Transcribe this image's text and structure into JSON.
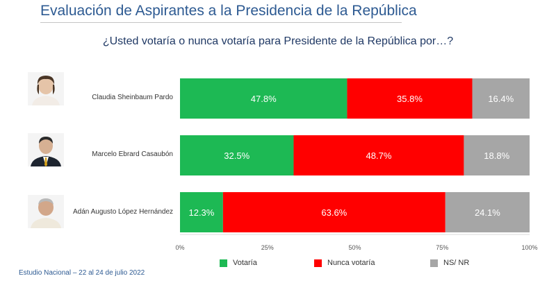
{
  "header": {
    "title": "Evaluación de Aspirantes a la Presidencia de la República",
    "subtitle": "¿Usted votaría o nunca votaría para Presidente de la República por…?"
  },
  "footer": {
    "source": "Estudio Nacional – 22 al 24 de julio 2022"
  },
  "colors": {
    "votaria": "#1db954",
    "nunca": "#ff0000",
    "nsnr": "#a6a6a6"
  },
  "chart_data": {
    "type": "bar",
    "orientation": "horizontal",
    "stacked": true,
    "categories": [
      "Claudia Sheinbaum Pardo",
      "Marcelo Ebrard Casaubón",
      "Adán Augusto López Hernández"
    ],
    "series": [
      {
        "name": "Votaría",
        "values": [
          47.8,
          32.5,
          12.3
        ],
        "labels": [
          "47.8%",
          "32.5%",
          "12.3%"
        ]
      },
      {
        "name": "Nunca votaría",
        "values": [
          35.8,
          48.7,
          63.6
        ],
        "labels": [
          "35.8%",
          "48.7%",
          "63.6%"
        ]
      },
      {
        "name": "NS/ NR",
        "values": [
          16.4,
          18.8,
          24.1
        ],
        "labels": [
          "16.4%",
          "18.8%",
          "24.1%"
        ]
      }
    ],
    "xlim": [
      0,
      100
    ],
    "xticks": [
      "0%",
      "25%",
      "50%",
      "75%",
      "100%"
    ],
    "grid": false,
    "legend": "bottom"
  }
}
